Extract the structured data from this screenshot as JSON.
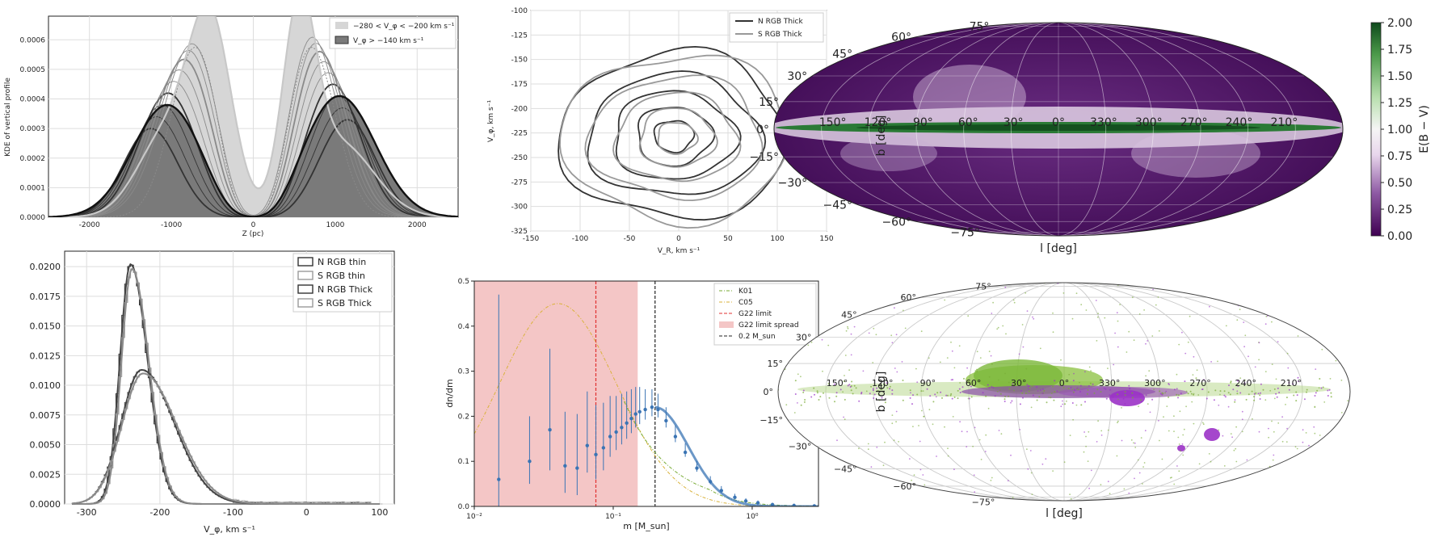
{
  "colors": {
    "dark_gray": "#333333",
    "mid_gray": "#8a8a8a",
    "light_gray": "#c8c8c8",
    "fill_dark": "#7a7a7a",
    "fill_light": "#d6d6d6",
    "blue": "#3a74b4",
    "red": "#e03030",
    "pink": "#f4c6c6",
    "green": "#77aa33",
    "yellow": "#d9b23a",
    "purple": "#4a0f5a",
    "violet": "#9a32c8"
  },
  "chart_data": [
    {
      "type": "line",
      "id": "kde",
      "xlabel": "Z (pc)",
      "ylabel": "KDE of vertical profile",
      "xlim": [
        -2500,
        2500
      ],
      "ylim": [
        0,
        0.00068
      ],
      "xticks": [
        -2000,
        -1000,
        0,
        1000,
        2000
      ],
      "yticks": [
        "0.0000",
        "0.0001",
        "0.0002",
        "0.0003",
        "0.0004",
        "0.0005",
        "0.0006"
      ],
      "yticks_values": [
        0,
        0.0001,
        0.0002,
        0.0003,
        0.0004,
        0.0005,
        0.0006
      ],
      "grid": true,
      "legend_position": "top-right",
      "legend": [
        "−280 < V_φ < −200 km s⁻¹",
        "V_φ > −140 km s⁻¹"
      ],
      "series": [
        {
          "name": "−280 < V_φ < −200 km s⁻¹",
          "x": [
            -2300,
            -1900,
            -1500,
            -1200,
            -900,
            -700,
            -500,
            -300,
            -150,
            0,
            150,
            300,
            500,
            650,
            800,
            1000,
            1300,
            1700,
            2100,
            2300
          ],
          "y": [
            0,
            4e-05,
            0.00015,
            0.0003,
            0.00045,
            0.00057,
            0.00064,
            0.0004,
            0.00012,
            2e-05,
            0.00012,
            0.0004,
            0.00062,
            0.00066,
            0.00052,
            0.00038,
            0.00024,
            0.0001,
            2e-05,
            0
          ]
        },
        {
          "name": "V_φ > −140 km s⁻¹",
          "x": [
            -2350,
            -2000,
            -1600,
            -1300,
            -1100,
            -900,
            -700,
            -500,
            -300,
            -150,
            0,
            150,
            300,
            500,
            700,
            900,
            1100,
            1400,
            1800,
            2100,
            2350
          ],
          "y": [
            0,
            4e-05,
            0.00017,
            0.00032,
            0.00038,
            0.00037,
            0.00031,
            0.00022,
            0.0001,
            3e-05,
            5e-06,
            3e-05,
            0.0001,
            0.00022,
            0.00033,
            0.0004,
            0.00041,
            0.00035,
            0.00017,
            5e-05,
            0
          ]
        }
      ]
    },
    {
      "type": "line",
      "id": "contour",
      "xlabel": "V_R, km s⁻¹",
      "ylabel": "V_φ, km s⁻¹",
      "xlim": [
        -150,
        150
      ],
      "ylim": [
        -325,
        -100
      ],
      "xticks": [
        -150,
        -100,
        -50,
        0,
        50,
        100,
        150
      ],
      "yticks": [
        -100,
        -125,
        -150,
        -175,
        -200,
        -225,
        -250,
        -275,
        -300,
        -325
      ],
      "grid": true,
      "legend_position": "top-right",
      "legend": [
        "N RGB Thick",
        "S RGB Thick"
      ],
      "contour_semi_axes": [
        [
          20,
          16
        ],
        [
          38,
          30
        ],
        [
          62,
          45
        ],
        [
          88,
          62
        ],
        [
          115,
          85
        ]
      ],
      "contour_center": [
        -5,
        -228
      ]
    },
    {
      "type": "scatter",
      "id": "sky_ebv",
      "xlabel": "l [deg]",
      "ylabel": "b [deg]",
      "colorbar_label": "E(B − V)",
      "colorbar_ticks": [
        "0.00",
        "0.25",
        "0.50",
        "0.75",
        "1.00",
        "1.25",
        "1.50",
        "1.75",
        "2.00"
      ],
      "lat_labels": [
        "75°",
        "60°",
        "45°",
        "30°",
        "15°",
        "0°",
        "−15°",
        "−30°",
        "−45°",
        "−60°",
        "−75°"
      ],
      "lon_labels": [
        "150°",
        "120°",
        "90°",
        "60°",
        "30°",
        "0°",
        "330°",
        "300°",
        "270°",
        "240°",
        "210°"
      ]
    },
    {
      "type": "bar",
      "id": "hist",
      "xlabel": "V_φ, km s⁻¹",
      "xlim": [
        -330,
        120
      ],
      "ylim": [
        0,
        0.0213
      ],
      "xticks": [
        -300,
        -200,
        -100,
        0,
        100
      ],
      "yticks": [
        "0.0000",
        "0.0025",
        "0.0050",
        "0.0075",
        "0.0100",
        "0.0125",
        "0.0150",
        "0.0175",
        "0.0200"
      ],
      "yticks_values": [
        0,
        0.0025,
        0.005,
        0.0075,
        0.01,
        0.0125,
        0.015,
        0.0175,
        0.02
      ],
      "grid": true,
      "legend_position": "top-right",
      "legend": [
        "N RGB thin",
        "S RGB thin",
        "N RGB Thick",
        "S RGB Thick"
      ],
      "series": [
        {
          "name": "N RGB thin",
          "peak_x": -240,
          "peak_y": 0.0202,
          "width": 17
        },
        {
          "name": "S RGB thin",
          "peak_x": -238,
          "peak_y": 0.0198,
          "width": 17
        },
        {
          "name": "N RGB Thick",
          "peak_x": -225,
          "peak_y": 0.0113,
          "width": 33
        },
        {
          "name": "S RGB Thick",
          "peak_x": -223,
          "peak_y": 0.011,
          "width": 34
        }
      ]
    },
    {
      "type": "scatter",
      "id": "mass_function",
      "xlabel": "m [M_sun]",
      "ylabel": "dn/dm",
      "xscale": "log",
      "xlim": [
        0.01,
        3
      ],
      "ylim": [
        0,
        0.5
      ],
      "xticks": [
        "10⁻²",
        "10⁻¹",
        "10⁰"
      ],
      "xticks_values": [
        0.01,
        0.1,
        1
      ],
      "yticks": [
        "0.0",
        "0.1",
        "0.2",
        "0.3",
        "0.4",
        "0.5"
      ],
      "yticks_values": [
        0,
        0.1,
        0.2,
        0.3,
        0.4,
        0.5
      ],
      "legend_position": "top-right",
      "legend": [
        "K01",
        "C05",
        "G22 limit",
        "G22 limit spread",
        "0.2 M_sun"
      ],
      "g22_limit": 0.075,
      "g22_spread": [
        0.01,
        0.15
      ],
      "mass_line": 0.2,
      "points": {
        "x": [
          0.015,
          0.025,
          0.035,
          0.045,
          0.055,
          0.065,
          0.075,
          0.085,
          0.095,
          0.105,
          0.115,
          0.125,
          0.135,
          0.145,
          0.155,
          0.17,
          0.19,
          0.21,
          0.24,
          0.28,
          0.33,
          0.4,
          0.5,
          0.6,
          0.75,
          0.9,
          1.1,
          1.4,
          2.0,
          2.8
        ],
        "y": [
          0.06,
          0.1,
          0.17,
          0.09,
          0.085,
          0.135,
          0.115,
          0.13,
          0.155,
          0.165,
          0.175,
          0.185,
          0.195,
          0.205,
          0.21,
          0.215,
          0.22,
          0.215,
          0.19,
          0.155,
          0.12,
          0.085,
          0.055,
          0.035,
          0.02,
          0.012,
          0.008,
          0.004,
          0.002,
          0.001
        ],
        "err": [
          0.41,
          0.1,
          0.18,
          0.12,
          0.12,
          0.12,
          0.11,
          0.1,
          0.09,
          0.08,
          0.075,
          0.07,
          0.065,
          0.06,
          0.055,
          0.045,
          0.04,
          0.035,
          0.03,
          0.025,
          0.02,
          0.016,
          0.012,
          0.01,
          0.008,
          0.006,
          0.005,
          0.004,
          0.003,
          0.002
        ]
      }
    },
    {
      "type": "scatter",
      "id": "sky_points",
      "xlabel": "l [deg]",
      "ylabel": "b [deg]",
      "lat_labels": [
        "75°",
        "60°",
        "45°",
        "30°",
        "15°",
        "0°",
        "−15°",
        "−30°",
        "−45°",
        "−60°",
        "−75°"
      ],
      "lon_labels": [
        "150°",
        "120°",
        "90°",
        "60°",
        "30°",
        "0°",
        "330°",
        "300°",
        "270°",
        "240°",
        "210°"
      ]
    }
  ]
}
